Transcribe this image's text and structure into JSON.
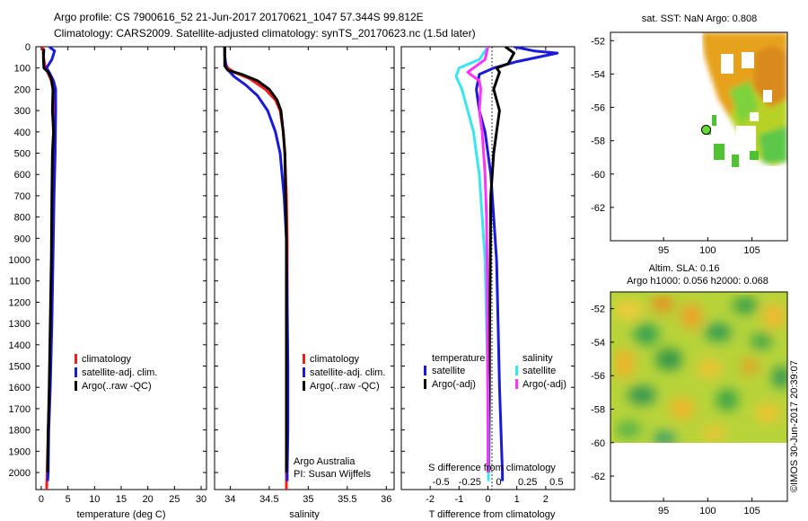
{
  "header": {
    "line1": "Argo profile: CS 7900616_52 21-Jun-2017 20170621_1047 57.344S 99.812E",
    "line2": "Climatology: CARS2009. Satellite-adjusted climatology: synTS_20170623.nc (1.5d later)"
  },
  "colors": {
    "climatology": "#ff1a1a",
    "satellite": "#1a1adb",
    "argo": "#000000",
    "sat_salinity": "#39e6f0",
    "argo_salinity": "#ff33ff"
  },
  "chart_data": [
    {
      "type": "line",
      "id": "temperature",
      "xlabel": "temperature (deg C)",
      "ylim": [
        2080,
        0
      ],
      "xlim": [
        -1,
        31
      ],
      "xticks": [
        0,
        5,
        10,
        15,
        20,
        25,
        30
      ],
      "yticks": [
        0,
        100,
        200,
        300,
        400,
        500,
        600,
        700,
        800,
        900,
        1000,
        1100,
        1200,
        1300,
        1400,
        1500,
        1600,
        1700,
        1800,
        1900,
        2000
      ],
      "legend": [
        "climatology",
        "satellite-adj. clim.",
        "Argo(..raw -QC)"
      ],
      "series": [
        {
          "name": "climatology",
          "color": "#ff1a1a",
          "points": [
            [
              0.3,
              0
            ],
            [
              0.4,
              40
            ],
            [
              0.6,
              80
            ],
            [
              1.2,
              120
            ],
            [
              1.9,
              160
            ],
            [
              2.2,
              200
            ],
            [
              2.3,
              300
            ],
            [
              2.3,
              500
            ],
            [
              2.2,
              700
            ],
            [
              2.1,
              1000
            ],
            [
              1.9,
              1300
            ],
            [
              1.6,
              1600
            ],
            [
              1.3,
              1800
            ],
            [
              1.1,
              2000
            ],
            [
              1.0,
              2080
            ]
          ]
        },
        {
          "name": "satellite-adj. clim.",
          "color": "#1a1adb",
          "points": [
            [
              1.5,
              0
            ],
            [
              2.5,
              20
            ],
            [
              2.0,
              60
            ],
            [
              1.0,
              100
            ],
            [
              1.5,
              120
            ],
            [
              2.3,
              160
            ],
            [
              2.7,
              200
            ],
            [
              2.7,
              300
            ],
            [
              2.6,
              500
            ],
            [
              2.4,
              700
            ],
            [
              2.2,
              1000
            ],
            [
              2.0,
              1300
            ],
            [
              1.7,
              1600
            ],
            [
              1.4,
              1800
            ],
            [
              1.3,
              2000
            ],
            [
              1.2,
              2040
            ]
          ]
        },
        {
          "name": "Argo(..raw -QC)",
          "color": "#000000",
          "points": [
            [
              0.5,
              10
            ],
            [
              0.4,
              50
            ],
            [
              0.5,
              100
            ],
            [
              1.3,
              120
            ],
            [
              1.9,
              150
            ],
            [
              2.2,
              200
            ],
            [
              2.1,
              300
            ],
            [
              2.3,
              400
            ],
            [
              2.1,
              500
            ],
            [
              2.0,
              700
            ],
            [
              1.9,
              1000
            ],
            [
              1.7,
              1300
            ],
            [
              1.5,
              1600
            ],
            [
              1.3,
              1800
            ],
            [
              1.2,
              1950
            ],
            [
              1.2,
              2000
            ]
          ]
        }
      ]
    },
    {
      "type": "line",
      "id": "salinity",
      "xlabel": "salinity",
      "ylim": [
        2080,
        0
      ],
      "xlim": [
        33.8,
        36.1
      ],
      "xticks": [
        34,
        34.5,
        35,
        35.5,
        36
      ],
      "xticklabels": [
        "34",
        "34.5",
        "35",
        "35.5",
        "36"
      ],
      "legend": [
        "climatology",
        "satellite-adj. clim.",
        "Argo(..raw -QC)"
      ],
      "annotation": [
        "Argo Australia",
        "PI: Susan Wijffels"
      ],
      "series": [
        {
          "name": "climatology",
          "color": "#ff1a1a",
          "points": [
            [
              33.93,
              0
            ],
            [
              33.93,
              40
            ],
            [
              33.94,
              80
            ],
            [
              33.97,
              100
            ],
            [
              34.05,
              120
            ],
            [
              34.25,
              150
            ],
            [
              34.45,
              200
            ],
            [
              34.58,
              250
            ],
            [
              34.64,
              300
            ],
            [
              34.68,
              400
            ],
            [
              34.7,
              500
            ],
            [
              34.72,
              700
            ],
            [
              34.73,
              900
            ],
            [
              34.73,
              1200
            ],
            [
              34.73,
              1500
            ],
            [
              34.72,
              1800
            ],
            [
              34.72,
              2080
            ]
          ]
        },
        {
          "name": "satellite-adj. clim.",
          "color": "#1a1adb",
          "points": [
            [
              33.93,
              0
            ],
            [
              33.93,
              40
            ],
            [
              33.95,
              100
            ],
            [
              34.05,
              140
            ],
            [
              34.2,
              180
            ],
            [
              34.35,
              230
            ],
            [
              34.48,
              300
            ],
            [
              34.58,
              400
            ],
            [
              34.64,
              500
            ],
            [
              34.69,
              700
            ],
            [
              34.72,
              900
            ],
            [
              34.73,
              1200
            ],
            [
              34.74,
              1500
            ],
            [
              34.74,
              1800
            ],
            [
              34.73,
              2000
            ],
            [
              34.73,
              2040
            ]
          ]
        },
        {
          "name": "Argo(..raw -QC)",
          "color": "#000000",
          "points": [
            [
              33.93,
              0
            ],
            [
              33.93,
              40
            ],
            [
              33.93,
              90
            ],
            [
              33.97,
              110
            ],
            [
              34.15,
              130
            ],
            [
              34.35,
              160
            ],
            [
              34.5,
              200
            ],
            [
              34.6,
              250
            ],
            [
              34.65,
              300
            ],
            [
              34.68,
              400
            ],
            [
              34.7,
              500
            ],
            [
              34.71,
              700
            ],
            [
              34.72,
              900
            ],
            [
              34.72,
              1200
            ],
            [
              34.72,
              1500
            ],
            [
              34.72,
              1800
            ],
            [
              34.72,
              2000
            ]
          ]
        }
      ]
    },
    {
      "type": "line",
      "id": "difference",
      "xlabel": "T difference from climatology",
      "xlabel_top": "S difference from climatology",
      "ylim": [
        2080,
        0
      ],
      "xlim": [
        -3,
        3
      ],
      "xticks": [
        -2,
        -1,
        0,
        1,
        2
      ],
      "top_ticklabels": [
        "-0.5",
        "-0.25",
        "0",
        "0.25",
        "0.5"
      ],
      "legend_left": {
        "title": "temperature",
        "items": [
          "satellite",
          "Argo(-adj)"
        ]
      },
      "legend_right": {
        "title": "salinity",
        "items": [
          "satellite",
          "Argo(-adj)"
        ]
      },
      "series": [
        {
          "name": "T satellite",
          "color": "#1a1adb",
          "points": [
            [
              0.9,
              0
            ],
            [
              1.6,
              20
            ],
            [
              2.4,
              30
            ],
            [
              1.0,
              70
            ],
            [
              0.2,
              100
            ],
            [
              -0.3,
              130
            ],
            [
              -0.4,
              200
            ],
            [
              -0.3,
              300
            ],
            [
              -0.1,
              400
            ],
            [
              0.1,
              600
            ],
            [
              0.2,
              800
            ],
            [
              0.3,
              1000
            ],
            [
              0.35,
              1300
            ],
            [
              0.4,
              1600
            ],
            [
              0.45,
              1800
            ],
            [
              0.5,
              2000
            ],
            [
              0.5,
              2040
            ]
          ]
        },
        {
          "name": "T Argo(-adj)",
          "color": "#000000",
          "points": [
            [
              0.6,
              0
            ],
            [
              0.9,
              30
            ],
            [
              0.7,
              80
            ],
            [
              0.3,
              100
            ],
            [
              0.4,
              120
            ],
            [
              0.3,
              160
            ],
            [
              0.2,
              200
            ],
            [
              0.4,
              300
            ],
            [
              0.3,
              400
            ],
            [
              0.2,
              500
            ],
            [
              0.1,
              700
            ],
            [
              0.08,
              1000
            ],
            [
              0.06,
              1300
            ],
            [
              0.05,
              1600
            ],
            [
              0.04,
              1800
            ],
            [
              0.03,
              2000
            ]
          ]
        },
        {
          "name": "S satellite",
          "color": "#39e6f0",
          "points": [
            [
              0,
              0
            ],
            [
              -0.3,
              60
            ],
            [
              -1.0,
              100
            ],
            [
              -1.1,
              140
            ],
            [
              -0.9,
              200
            ],
            [
              -0.7,
              300
            ],
            [
              -0.5,
              400
            ],
            [
              -0.4,
              500
            ],
            [
              -0.3,
              600
            ],
            [
              -0.2,
              800
            ],
            [
              -0.1,
              1000
            ],
            [
              -0.05,
              1300
            ],
            [
              0,
              1600
            ],
            [
              0.02,
              1800
            ],
            [
              0.02,
              2000
            ],
            [
              0.02,
              2040
            ]
          ]
        },
        {
          "name": "S Argo(-adj)",
          "color": "#ff33ff",
          "points": [
            [
              0,
              0
            ],
            [
              -0.1,
              60
            ],
            [
              -0.5,
              100
            ],
            [
              -0.7,
              120
            ],
            [
              -0.5,
              140
            ],
            [
              -0.3,
              160
            ],
            [
              -0.25,
              200
            ],
            [
              -0.3,
              300
            ],
            [
              -0.2,
              400
            ],
            [
              -0.15,
              500
            ],
            [
              -0.1,
              600
            ],
            [
              -0.05,
              800
            ],
            [
              -0.03,
              1000
            ],
            [
              -0.02,
              1300
            ],
            [
              -0.01,
              1600
            ],
            [
              0,
              1800
            ],
            [
              0,
              2000
            ]
          ]
        }
      ]
    },
    {
      "type": "heatmap",
      "id": "sst-map",
      "title": "sat. SST: NaN Argo: 0.808",
      "xlim": [
        89,
        109
      ],
      "ylim": [
        -64,
        -51.5
      ],
      "xticks": [
        95,
        100,
        105
      ],
      "yticks": [
        -52,
        -54,
        -56,
        -58,
        -60,
        -62
      ],
      "yticklabels": [
        "-52",
        "-54",
        "-56",
        "-58",
        "-60",
        "-62"
      ],
      "argo_position": [
        99.812,
        -57.344
      ]
    },
    {
      "type": "heatmap",
      "id": "sla-map",
      "title": "Altim. SLA: 0.16",
      "subtitle": "Argo h1000: 0.056 h2000: 0.068",
      "xlim": [
        89,
        109
      ],
      "ylim": [
        -63.5,
        -51
      ],
      "xticks": [
        95,
        100,
        105
      ],
      "yticks": [
        -52,
        -54,
        -56,
        -58,
        -60,
        -62
      ],
      "yticklabels": [
        "-52",
        "-54",
        "-56",
        "-58",
        "-60",
        "-62"
      ]
    }
  ],
  "footer": {
    "credit": "©IMOS 30-Jun-2017 20:39:07"
  }
}
